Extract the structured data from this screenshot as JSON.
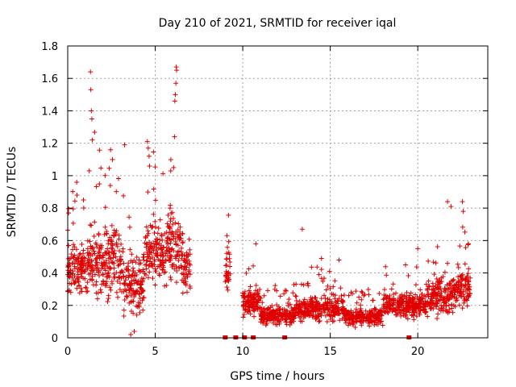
{
  "chart_data": {
    "type": "scatter",
    "title": "Day 210 of 2021, SRMTID for receiver iqal",
    "xlabel": "GPS time / hours",
    "ylabel": "SRMTID / TECUs",
    "xlim": [
      0,
      24
    ],
    "ylim": [
      0,
      1.8
    ],
    "xticks": [
      0,
      5,
      10,
      15,
      20
    ],
    "xtick_labels": [
      "0",
      "5",
      "10",
      "15",
      "20"
    ],
    "yticks": [
      0,
      0.2,
      0.4,
      0.6,
      0.8,
      1,
      1.2,
      1.4,
      1.6,
      1.8
    ],
    "ytick_labels": [
      "0",
      "0.2",
      "0.4",
      "0.6",
      "0.8",
      "1",
      "1.2",
      "1.4",
      "1.6",
      "1.8"
    ],
    "grid": true,
    "marker": "+",
    "color": "#e00000",
    "segments": [
      {
        "x0": 0.0,
        "x1": 1.2,
        "base": 0.42,
        "spread": 0.22,
        "peaks": [
          {
            "x": 0.05,
            "y": 0.77
          },
          {
            "x": 0.9,
            "y": 0.85
          }
        ]
      },
      {
        "x0": 1.2,
        "x1": 3.2,
        "base": 0.48,
        "spread": 0.32,
        "peaks": [
          {
            "x": 1.3,
            "y": 1.64
          },
          {
            "x": 1.32,
            "y": 1.53
          },
          {
            "x": 1.35,
            "y": 1.4
          },
          {
            "x": 1.38,
            "y": 1.35
          },
          {
            "x": 1.4,
            "y": 1.22
          },
          {
            "x": 2.45,
            "y": 1.16
          },
          {
            "x": 3.25,
            "y": 1.19
          }
        ]
      },
      {
        "x0": 3.2,
        "x1": 4.4,
        "base": 0.34,
        "spread": 0.28,
        "peaks": [
          {
            "x": 3.6,
            "y": 0.02
          },
          {
            "x": 3.8,
            "y": 0.04
          }
        ]
      },
      {
        "x0": 4.4,
        "x1": 5.6,
        "base": 0.52,
        "spread": 0.26,
        "peaks": [
          {
            "x": 4.55,
            "y": 1.21
          },
          {
            "x": 4.6,
            "y": 1.17
          },
          {
            "x": 4.65,
            "y": 1.12
          }
        ]
      },
      {
        "x0": 5.6,
        "x1": 6.6,
        "base": 0.55,
        "spread": 0.3,
        "peaks": [
          {
            "x": 6.2,
            "y": 1.67
          },
          {
            "x": 6.22,
            "y": 1.65
          },
          {
            "x": 6.18,
            "y": 1.57
          },
          {
            "x": 6.15,
            "y": 1.5
          },
          {
            "x": 6.12,
            "y": 1.46
          },
          {
            "x": 6.1,
            "y": 1.24
          },
          {
            "x": 6.05,
            "y": 1.05
          }
        ]
      },
      {
        "x0": 6.6,
        "x1": 7.0,
        "base": 0.42,
        "spread": 0.2,
        "peaks": []
      },
      {
        "x0": 9.0,
        "x1": 9.3,
        "base": 0.42,
        "spread": 0.2,
        "peaks": [
          {
            "x": 9.1,
            "y": 0.63
          }
        ]
      },
      {
        "x0": 10.0,
        "x1": 11.0,
        "base": 0.22,
        "spread": 0.12,
        "peaks": [
          {
            "x": 10.75,
            "y": 0.58
          }
        ]
      },
      {
        "x0": 11.0,
        "x1": 13.0,
        "base": 0.14,
        "spread": 0.08,
        "peaks": []
      },
      {
        "x0": 13.0,
        "x1": 15.8,
        "base": 0.18,
        "spread": 0.1,
        "peaks": [
          {
            "x": 13.4,
            "y": 0.67
          },
          {
            "x": 14.5,
            "y": 0.49
          },
          {
            "x": 15.5,
            "y": 0.48
          }
        ]
      },
      {
        "x0": 15.8,
        "x1": 18.0,
        "base": 0.13,
        "spread": 0.07,
        "peaks": []
      },
      {
        "x0": 18.0,
        "x1": 20.5,
        "base": 0.2,
        "spread": 0.1,
        "peaks": [
          {
            "x": 19.3,
            "y": 0.45
          },
          {
            "x": 20.0,
            "y": 0.55
          }
        ]
      },
      {
        "x0": 20.5,
        "x1": 22.0,
        "base": 0.26,
        "spread": 0.16,
        "peaks": [
          {
            "x": 21.7,
            "y": 0.84
          },
          {
            "x": 21.9,
            "y": 0.81
          }
        ]
      },
      {
        "x0": 22.0,
        "x1": 23.0,
        "base": 0.3,
        "spread": 0.16,
        "peaks": [
          {
            "x": 22.55,
            "y": 0.84
          },
          {
            "x": 22.6,
            "y": 0.78
          }
        ]
      }
    ],
    "zero_markers": [
      9.0,
      9.6,
      10.1,
      10.6,
      12.4,
      19.5
    ]
  }
}
